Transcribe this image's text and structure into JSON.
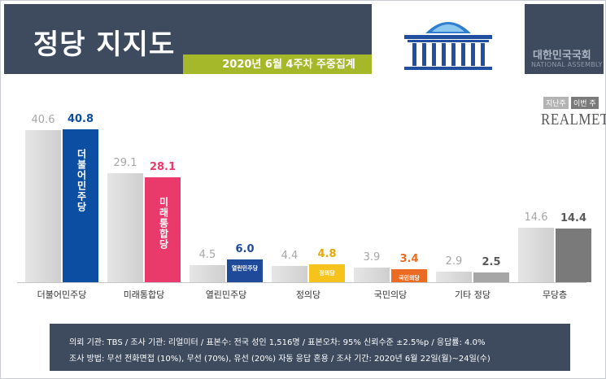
{
  "header": {
    "title": "정당 지지도",
    "subtitle": "2020년 6월 4주차 주중집계",
    "assembly_kr": "대한민국국회",
    "assembly_en": "NATIONAL ASSEMBLY"
  },
  "legend": {
    "prev_label": "지난주",
    "curr_label": "이번 주",
    "brand": "REALMETER"
  },
  "colors": {
    "header_bg": "#3e4a5e",
    "subtitle_bg": "#a5b82a",
    "prev_bar": "#d9d9d9",
    "party": [
      "#0b4ea2",
      "#ea3a6b",
      "#1f4a9a",
      "#f6c21c",
      "#ec6b22",
      "#a6a6a6",
      "#7a7a7a"
    ]
  },
  "chart_data": {
    "type": "bar",
    "title": "정당 지지도",
    "subtitle": "2020년 6월 4주차 주중집계",
    "categories": [
      "더불어민주당",
      "미래통합당",
      "열린민주당",
      "정의당",
      "국민의당",
      "기타 정당",
      "무당층"
    ],
    "series": [
      {
        "name": "지난주",
        "values": [
          40.6,
          29.1,
          4.5,
          4.4,
          3.9,
          2.9,
          14.6
        ]
      },
      {
        "name": "이번 주",
        "values": [
          40.8,
          28.1,
          6.0,
          4.8,
          3.4,
          2.5,
          14.4
        ]
      }
    ],
    "value_labels_prev": [
      "40.6",
      "29.1",
      "4.5",
      "4.4",
      "3.9",
      "2.9",
      "14.6"
    ],
    "value_labels_curr": [
      "40.8",
      "28.1",
      "6.0",
      "4.8",
      "3.4",
      "2.5",
      "14.4"
    ],
    "logo_texts": [
      "더불어민주당",
      "미래통합당",
      "열린민주당",
      "정의당",
      "국민의당"
    ],
    "ylim": [
      0,
      45
    ],
    "grid": false,
    "legend_position": "top-right"
  },
  "footer": {
    "line1": "의뢰 기관: TBS / 조사 기관: 리얼미터 / 표본수: 전국 성인 1,516명 / 표본오차: 95% 신뢰수준 ±2.5%p / 응답률: 4.0%",
    "line2": "조사 방법: 무선 전화면접 (10%), 무선 (70%), 유선 (20%) 자동 응답 혼용 / 조사 기간: 2020년 6월 22일(월)~24일(수)"
  }
}
